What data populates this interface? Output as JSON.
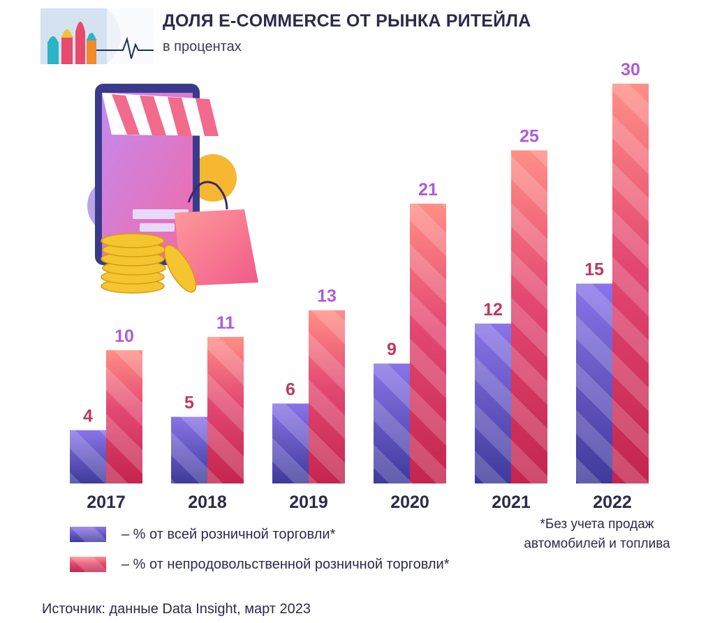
{
  "header": {
    "title": "ДОЛЯ E-COMMERCE ОТ РЫНКА РИТЕЙЛА",
    "subtitle": "в процентах"
  },
  "chart_data": {
    "type": "bar",
    "categories": [
      "2017",
      "2018",
      "2019",
      "2020",
      "2021",
      "2022"
    ],
    "series": [
      {
        "name": "– % от всей розничной торговли*",
        "values": [
          4,
          5,
          6,
          9,
          12,
          15
        ],
        "color": "#6b5fd6",
        "label_color": "#c2375e"
      },
      {
        "name": "– % от непродовольственной розничной торговли*",
        "values": [
          10,
          11,
          13,
          21,
          25,
          30
        ],
        "color": "#e0466e",
        "label_color": "#b05ad8"
      }
    ],
    "ylim": [
      0,
      30
    ],
    "grid": false,
    "xlabel": "",
    "ylabel": ""
  },
  "legend": {
    "retail_label": "– % от всей розничной торговли*",
    "nonfood_label": "– % от непродовольственной розничной торговли*"
  },
  "footnote": {
    "line1": "*Без учета продаж",
    "line2": "автомобилей и топлива"
  },
  "source": "Источник: данные Data Insight, март 2023"
}
